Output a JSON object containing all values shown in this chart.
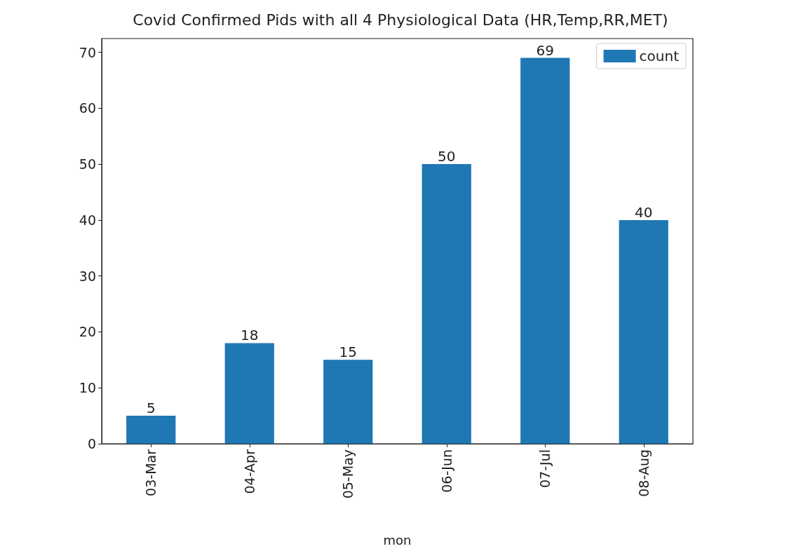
{
  "chart_data": {
    "type": "bar",
    "title": "Covid Confirmed Pids with all 4 Physiological Data (HR,Temp,RR,MET)",
    "xlabel": "mon",
    "categories": [
      "03-Mar",
      "04-Apr",
      "05-May",
      "06-Jun",
      "07-Jul",
      "08-Aug"
    ],
    "series": [
      {
        "name": "count",
        "color": "#1f77b4",
        "values": [
          5,
          18,
          15,
          50,
          69,
          40
        ]
      }
    ],
    "ylim": [
      0,
      72.45
    ],
    "yticks": [
      0,
      10,
      20,
      30,
      40,
      50,
      60,
      70
    ],
    "data_labels": true,
    "legend": "top right",
    "grid": false
  }
}
